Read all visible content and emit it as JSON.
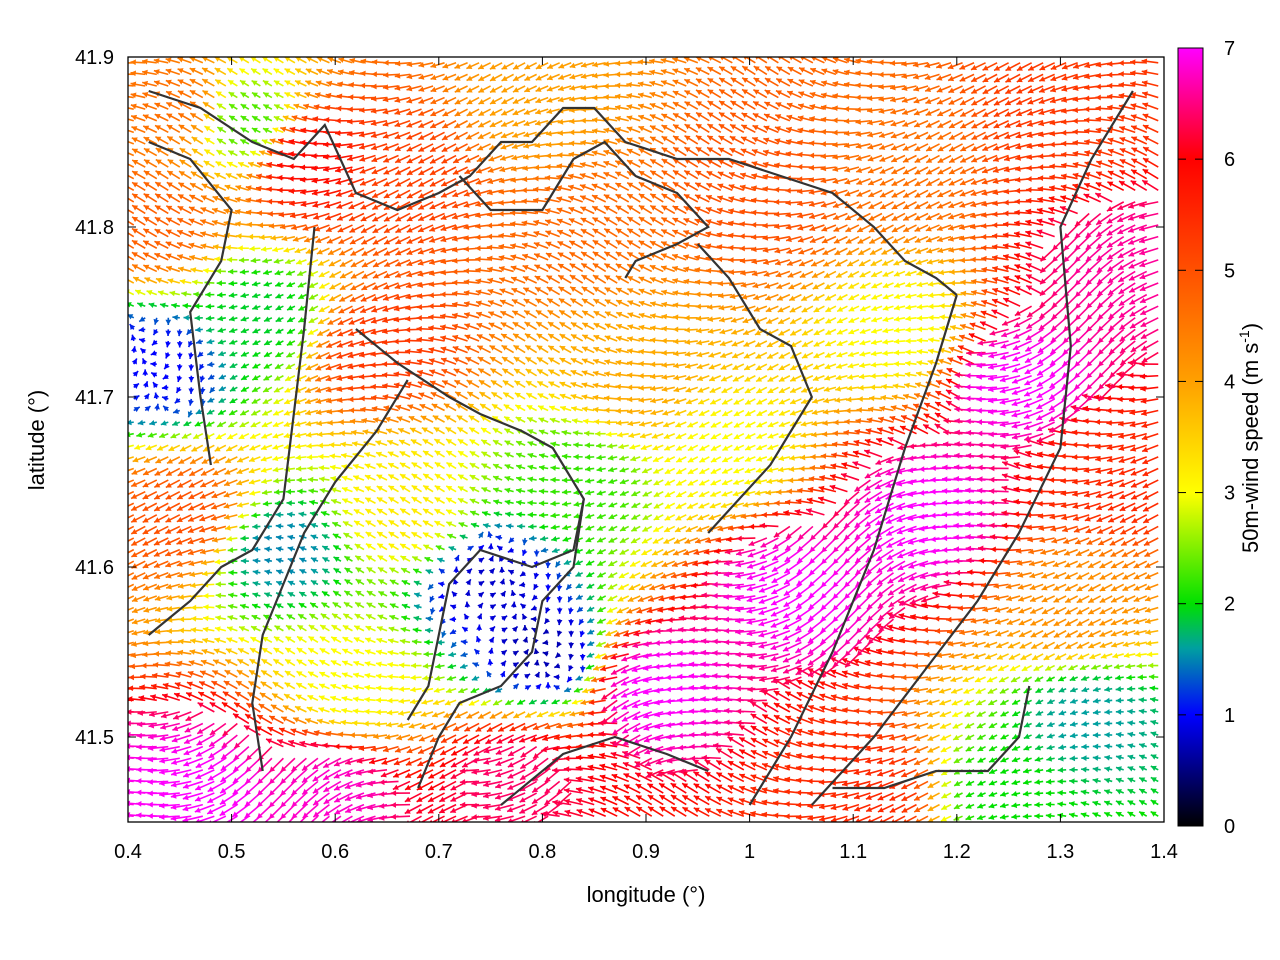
{
  "chart_data": {
    "type": "vector-field",
    "xlabel": "longitude (°)",
    "ylabel": "latitude (°)",
    "xlim": [
      0.4,
      1.4
    ],
    "ylim": [
      41.45,
      41.9
    ],
    "x_ticks": [
      0.4,
      0.5,
      0.6,
      0.7,
      0.8,
      0.9,
      1.0,
      1.1,
      1.2,
      1.3,
      1.4
    ],
    "x_tick_labels": [
      "0.4",
      "0.5",
      "0.6",
      "0.7",
      "0.8",
      "0.9",
      "1",
      "1.1",
      "1.2",
      "1.3",
      "1.4"
    ],
    "y_ticks": [
      41.5,
      41.6,
      41.7,
      41.8,
      41.9
    ],
    "y_tick_labels": [
      "41.5",
      "41.6",
      "41.7",
      "41.8",
      "41.9"
    ],
    "colorbar": {
      "label_main": "50m-wind speed (m s",
      "label_sup": "-1",
      "label_close": ")",
      "range": [
        0,
        7
      ],
      "ticks": [
        0,
        1,
        2,
        3,
        4,
        5,
        6,
        7
      ],
      "tick_labels": [
        "0",
        "1",
        "2",
        "3",
        "4",
        "5",
        "6",
        "7"
      ],
      "colors": [
        {
          "v": 0.0,
          "c": "#000000"
        },
        {
          "v": 1.0,
          "c": "#0000ff"
        },
        {
          "v": 1.6,
          "c": "#00a0a0"
        },
        {
          "v": 2.0,
          "c": "#00e000"
        },
        {
          "v": 3.0,
          "c": "#ffff00"
        },
        {
          "v": 4.0,
          "c": "#ffa000"
        },
        {
          "v": 5.0,
          "c": "#ff5000"
        },
        {
          "v": 6.0,
          "c": "#ff0000"
        },
        {
          "v": 7.0,
          "c": "#ff00ff"
        }
      ]
    },
    "speed_regions": [
      {
        "lon": 0.45,
        "lat": 41.87,
        "speed": 4.6
      },
      {
        "lon": 0.43,
        "lat": 41.8,
        "speed": 4.8
      },
      {
        "lon": 0.46,
        "lat": 41.63,
        "speed": 5.0
      },
      {
        "lon": 0.43,
        "lat": 41.72,
        "speed": 1.0
      },
      {
        "lon": 0.53,
        "lat": 41.75,
        "speed": 1.9
      },
      {
        "lon": 0.52,
        "lat": 41.86,
        "speed": 2.3
      },
      {
        "lon": 0.58,
        "lat": 41.84,
        "speed": 5.9
      },
      {
        "lon": 0.65,
        "lat": 41.73,
        "speed": 5.3
      },
      {
        "lon": 0.68,
        "lat": 41.83,
        "speed": 5.2
      },
      {
        "lon": 0.83,
        "lat": 41.8,
        "speed": 4.7
      },
      {
        "lon": 0.8,
        "lat": 41.87,
        "speed": 4.0
      },
      {
        "lon": 0.9,
        "lat": 41.71,
        "speed": 3.9
      },
      {
        "lon": 0.98,
        "lat": 41.67,
        "speed": 3.0
      },
      {
        "lon": 1.02,
        "lat": 41.82,
        "speed": 5.0
      },
      {
        "lon": 1.15,
        "lat": 41.84,
        "speed": 4.6
      },
      {
        "lon": 1.15,
        "lat": 41.74,
        "speed": 3.0
      },
      {
        "lon": 1.32,
        "lat": 41.86,
        "speed": 5.3
      },
      {
        "lon": 0.67,
        "lat": 41.63,
        "speed": 3.2
      },
      {
        "lon": 0.55,
        "lat": 41.61,
        "speed": 1.5
      },
      {
        "lon": 0.75,
        "lat": 41.59,
        "speed": 0.8
      },
      {
        "lon": 0.8,
        "lat": 41.55,
        "speed": 0.7
      },
      {
        "lon": 0.84,
        "lat": 41.65,
        "speed": 2.2
      },
      {
        "lon": 0.62,
        "lat": 41.53,
        "speed": 3.0
      },
      {
        "lon": 0.48,
        "lat": 41.47,
        "speed": 7.0
      },
      {
        "lon": 0.6,
        "lat": 41.47,
        "speed": 6.8
      },
      {
        "lon": 0.78,
        "lat": 41.48,
        "speed": 6.4
      },
      {
        "lon": 0.92,
        "lat": 41.53,
        "speed": 7.0
      },
      {
        "lon": 1.05,
        "lat": 41.59,
        "speed": 7.0
      },
      {
        "lon": 1.18,
        "lat": 41.63,
        "speed": 7.0
      },
      {
        "lon": 1.27,
        "lat": 41.71,
        "speed": 7.0
      },
      {
        "lon": 1.36,
        "lat": 41.66,
        "speed": 5.5
      },
      {
        "lon": 1.32,
        "lat": 41.58,
        "speed": 4.2
      },
      {
        "lon": 1.33,
        "lat": 41.51,
        "speed": 1.6
      },
      {
        "lon": 1.25,
        "lat": 41.47,
        "speed": 2.0
      },
      {
        "lon": 1.12,
        "lat": 41.47,
        "speed": 5.5
      },
      {
        "lon": 1.37,
        "lat": 41.78,
        "speed": 6.6
      }
    ],
    "contour_lines": [
      [
        [
          0.42,
          41.88
        ],
        [
          0.47,
          41.87
        ],
        [
          0.52,
          41.85
        ],
        [
          0.56,
          41.84
        ],
        [
          0.59,
          41.86
        ],
        [
          0.62,
          41.82
        ],
        [
          0.66,
          41.81
        ],
        [
          0.7,
          41.82
        ],
        [
          0.73,
          41.83
        ],
        [
          0.76,
          41.85
        ],
        [
          0.79,
          41.85
        ],
        [
          0.82,
          41.87
        ],
        [
          0.85,
          41.87
        ],
        [
          0.88,
          41.85
        ],
        [
          0.93,
          41.84
        ],
        [
          0.98,
          41.84
        ],
        [
          1.03,
          41.83
        ],
        [
          1.08,
          41.82
        ],
        [
          1.12,
          41.8
        ],
        [
          1.15,
          41.78
        ],
        [
          1.18,
          41.77
        ],
        [
          1.2,
          41.76
        ]
      ],
      [
        [
          0.42,
          41.85
        ],
        [
          0.46,
          41.84
        ],
        [
          0.5,
          41.81
        ],
        [
          0.49,
          41.78
        ],
        [
          0.46,
          41.75
        ],
        [
          0.47,
          41.7
        ],
        [
          0.48,
          41.66
        ]
      ],
      [
        [
          0.58,
          41.8
        ],
        [
          0.57,
          41.74
        ],
        [
          0.56,
          41.69
        ],
        [
          0.55,
          41.64
        ],
        [
          0.52,
          41.61
        ],
        [
          0.49,
          41.6
        ],
        [
          0.46,
          41.58
        ],
        [
          0.44,
          41.57
        ],
        [
          0.42,
          41.56
        ]
      ],
      [
        [
          0.72,
          41.83
        ],
        [
          0.75,
          41.81
        ],
        [
          0.8,
          41.81
        ],
        [
          0.83,
          41.84
        ],
        [
          0.86,
          41.85
        ],
        [
          0.89,
          41.83
        ],
        [
          0.93,
          41.82
        ],
        [
          0.96,
          41.8
        ],
        [
          0.93,
          41.79
        ],
        [
          0.89,
          41.78
        ],
        [
          0.88,
          41.77
        ]
      ],
      [
        [
          0.62,
          41.74
        ],
        [
          0.66,
          41.72
        ],
        [
          0.71,
          41.7
        ],
        [
          0.74,
          41.69
        ],
        [
          0.78,
          41.68
        ],
        [
          0.81,
          41.67
        ],
        [
          0.84,
          41.64
        ],
        [
          0.83,
          41.61
        ],
        [
          0.79,
          41.6
        ],
        [
          0.74,
          41.61
        ],
        [
          0.71,
          41.59
        ],
        [
          0.7,
          41.56
        ],
        [
          0.69,
          41.53
        ],
        [
          0.67,
          41.51
        ]
      ],
      [
        [
          0.67,
          41.71
        ],
        [
          0.64,
          41.68
        ],
        [
          0.6,
          41.65
        ],
        [
          0.57,
          41.62
        ],
        [
          0.55,
          41.59
        ],
        [
          0.53,
          41.56
        ],
        [
          0.52,
          41.52
        ],
        [
          0.53,
          41.48
        ]
      ],
      [
        [
          0.95,
          41.79
        ],
        [
          0.98,
          41.77
        ],
        [
          1.01,
          41.74
        ],
        [
          1.04,
          41.73
        ],
        [
          1.06,
          41.7
        ],
        [
          1.04,
          41.68
        ],
        [
          1.02,
          41.66
        ],
        [
          0.99,
          41.64
        ],
        [
          0.96,
          41.62
        ]
      ],
      [
        [
          1.2,
          41.76
        ],
        [
          1.18,
          41.72
        ],
        [
          1.15,
          41.67
        ],
        [
          1.12,
          41.61
        ],
        [
          1.08,
          41.55
        ],
        [
          1.04,
          41.5
        ],
        [
          1.0,
          41.46
        ]
      ],
      [
        [
          1.37,
          41.88
        ],
        [
          1.33,
          41.84
        ],
        [
          1.3,
          41.8
        ],
        [
          1.31,
          41.73
        ],
        [
          1.3,
          41.67
        ],
        [
          1.26,
          41.62
        ],
        [
          1.22,
          41.58
        ],
        [
          1.17,
          41.54
        ],
        [
          1.12,
          41.5
        ],
        [
          1.06,
          41.46
        ]
      ],
      [
        [
          0.84,
          41.64
        ],
        [
          0.83,
          41.6
        ],
        [
          0.8,
          41.58
        ],
        [
          0.79,
          41.55
        ],
        [
          0.76,
          41.53
        ],
        [
          0.72,
          41.52
        ],
        [
          0.7,
          41.5
        ],
        [
          0.68,
          41.47
        ]
      ],
      [
        [
          0.76,
          41.46
        ],
        [
          0.82,
          41.49
        ],
        [
          0.87,
          41.5
        ],
        [
          0.92,
          41.49
        ],
        [
          0.96,
          41.48
        ]
      ],
      [
        [
          1.08,
          41.47
        ],
        [
          1.13,
          41.47
        ],
        [
          1.18,
          41.48
        ],
        [
          1.23,
          41.48
        ],
        [
          1.26,
          41.5
        ],
        [
          1.27,
          41.53
        ]
      ]
    ]
  }
}
